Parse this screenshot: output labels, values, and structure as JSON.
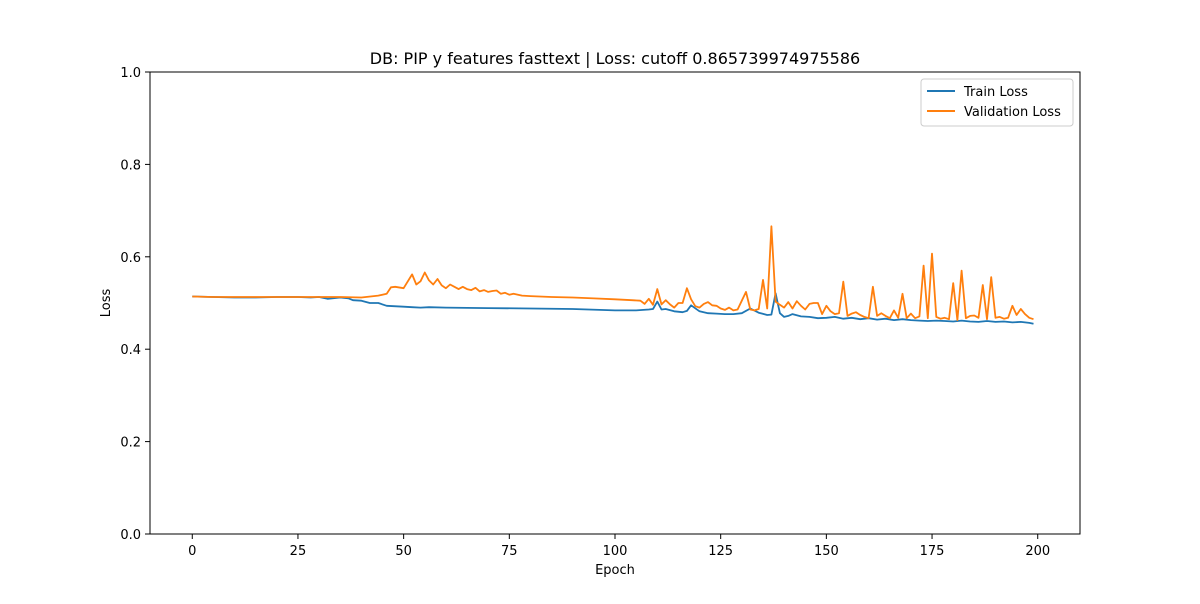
{
  "chart_data": {
    "type": "line",
    "title": "DB: PIP y features fasttext | Loss: cutoff 0.865739974975586",
    "xlabel": "Epoch",
    "ylabel": "Loss",
    "xlim": [
      -10,
      210
    ],
    "ylim": [
      0.0,
      1.0
    ],
    "xticks": [
      0,
      25,
      50,
      75,
      100,
      125,
      150,
      175,
      200
    ],
    "xtick_labels": [
      "0",
      "25",
      "50",
      "75",
      "100",
      "125",
      "150",
      "175",
      "200"
    ],
    "yticks": [
      0.0,
      0.2,
      0.4,
      0.6,
      0.8,
      1.0
    ],
    "ytick_labels": [
      "0.0",
      "0.2",
      "0.4",
      "0.6",
      "0.8",
      "1.0"
    ],
    "grid": false,
    "legend_position": "top-right",
    "series": [
      {
        "name": "Train Loss",
        "color": "#1f77b4",
        "x": [
          0,
          5,
          10,
          15,
          20,
          25,
          28,
          30,
          32,
          35,
          37,
          38,
          40,
          42,
          44,
          46,
          50,
          52,
          54,
          56,
          60,
          70,
          80,
          90,
          100,
          105,
          108,
          109,
          110,
          111,
          112,
          114,
          116,
          117,
          118,
          120,
          122,
          124,
          126,
          128,
          130,
          132,
          134,
          136,
          137,
          138,
          139,
          140,
          141,
          142,
          144,
          146,
          148,
          150,
          152,
          154,
          156,
          158,
          160,
          162,
          164,
          166,
          168,
          170,
          172,
          174,
          176,
          178,
          180,
          182,
          184,
          186,
          188,
          190,
          192,
          194,
          196,
          198,
          199
        ],
        "y": [
          0.514,
          0.513,
          0.512,
          0.512,
          0.513,
          0.513,
          0.512,
          0.513,
          0.509,
          0.512,
          0.51,
          0.506,
          0.505,
          0.5,
          0.5,
          0.494,
          0.492,
          0.491,
          0.49,
          0.491,
          0.49,
          0.489,
          0.488,
          0.487,
          0.484,
          0.484,
          0.486,
          0.487,
          0.503,
          0.486,
          0.487,
          0.482,
          0.48,
          0.483,
          0.495,
          0.482,
          0.478,
          0.477,
          0.476,
          0.476,
          0.478,
          0.488,
          0.479,
          0.474,
          0.475,
          0.521,
          0.478,
          0.47,
          0.472,
          0.476,
          0.471,
          0.47,
          0.467,
          0.468,
          0.47,
          0.466,
          0.468,
          0.465,
          0.467,
          0.464,
          0.466,
          0.463,
          0.465,
          0.463,
          0.462,
          0.461,
          0.462,
          0.461,
          0.46,
          0.462,
          0.46,
          0.459,
          0.461,
          0.459,
          0.46,
          0.458,
          0.459,
          0.457,
          0.455
        ]
      },
      {
        "name": "Validation Loss",
        "color": "#ff7f0e",
        "x": [
          0,
          5,
          10,
          15,
          20,
          25,
          30,
          35,
          40,
          44,
          46,
          47,
          48,
          50,
          52,
          53,
          54,
          55,
          56,
          57,
          58,
          59,
          60,
          61,
          62,
          63,
          64,
          65,
          66,
          67,
          68,
          69,
          70,
          71,
          72,
          73,
          74,
          75,
          76,
          78,
          80,
          85,
          90,
          95,
          100,
          104,
          106,
          107,
          108,
          109,
          110,
          111,
          112,
          113,
          114,
          115,
          116,
          117,
          118,
          119,
          120,
          121,
          122,
          123,
          124,
          125,
          126,
          127,
          128,
          129,
          130,
          131,
          132,
          133,
          134,
          135,
          136,
          137,
          138,
          139,
          140,
          141,
          142,
          143,
          144,
          145,
          146,
          147,
          148,
          149,
          150,
          151,
          152,
          153,
          154,
          155,
          156,
          157,
          158,
          159,
          160,
          161,
          162,
          163,
          164,
          165,
          166,
          167,
          168,
          169,
          170,
          171,
          172,
          173,
          174,
          175,
          176,
          177,
          178,
          179,
          180,
          181,
          182,
          183,
          184,
          185,
          186,
          187,
          188,
          189,
          190,
          191,
          192,
          193,
          194,
          195,
          196,
          197,
          198,
          199
        ],
        "y": [
          0.514,
          0.513,
          0.513,
          0.513,
          0.513,
          0.513,
          0.513,
          0.513,
          0.512,
          0.516,
          0.52,
          0.534,
          0.535,
          0.532,
          0.562,
          0.54,
          0.547,
          0.566,
          0.549,
          0.54,
          0.552,
          0.538,
          0.532,
          0.54,
          0.535,
          0.53,
          0.535,
          0.53,
          0.528,
          0.533,
          0.525,
          0.528,
          0.524,
          0.526,
          0.527,
          0.52,
          0.522,
          0.518,
          0.52,
          0.516,
          0.515,
          0.513,
          0.512,
          0.51,
          0.508,
          0.506,
          0.505,
          0.498,
          0.509,
          0.496,
          0.53,
          0.497,
          0.506,
          0.497,
          0.49,
          0.5,
          0.5,
          0.532,
          0.508,
          0.493,
          0.49,
          0.498,
          0.502,
          0.495,
          0.494,
          0.488,
          0.485,
          0.49,
          0.484,
          0.486,
          0.505,
          0.524,
          0.486,
          0.484,
          0.487,
          0.55,
          0.488,
          0.666,
          0.503,
          0.496,
          0.49,
          0.502,
          0.488,
          0.504,
          0.494,
          0.486,
          0.498,
          0.5,
          0.5,
          0.476,
          0.494,
          0.482,
          0.476,
          0.478,
          0.546,
          0.472,
          0.477,
          0.48,
          0.474,
          0.47,
          0.467,
          0.535,
          0.472,
          0.478,
          0.472,
          0.467,
          0.484,
          0.468,
          0.52,
          0.467,
          0.477,
          0.467,
          0.471,
          0.581,
          0.467,
          0.607,
          0.47,
          0.466,
          0.468,
          0.465,
          0.543,
          0.463,
          0.57,
          0.467,
          0.472,
          0.473,
          0.468,
          0.539,
          0.465,
          0.556,
          0.468,
          0.47,
          0.466,
          0.468,
          0.494,
          0.474,
          0.487,
          0.476,
          0.468,
          0.465
        ]
      }
    ]
  }
}
